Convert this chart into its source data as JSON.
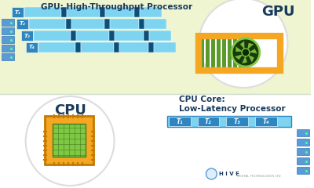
{
  "bg_color": "#eef5d0",
  "bg_bottom_color": "#ffffff",
  "title_gpu": "GPU: High-Throughput Processor",
  "title_cpu": "CPU Core:\nLow-Latency Processor",
  "label_gpu": "GPU",
  "label_cpu": "CPU",
  "gpu_threads": [
    "T₁",
    "T₂",
    "T₃",
    "T₄"
  ],
  "cpu_threads": [
    "T₁",
    "T₂",
    "T₃",
    "T₄"
  ],
  "bar_light": "#7dd4f0",
  "bar_dark": "#0d4f7c",
  "medium_blue": "#2e86c1",
  "navy": "#1a3a5c",
  "orange": "#f5a623",
  "green": "#7dc944",
  "dark_green": "#4a7a20",
  "white": "#ffffff",
  "text_dark": "#1a3a5c",
  "divider_color": "#ccddcc",
  "server_blue": "#5b9bd5",
  "server_blue_dark": "#3a78b5",
  "hive_blue": "#5b9bd5",
  "chip_orange": "#f5a623",
  "chip_orange_dark": "#c47a00",
  "gpu_green": "#5a9a2a"
}
